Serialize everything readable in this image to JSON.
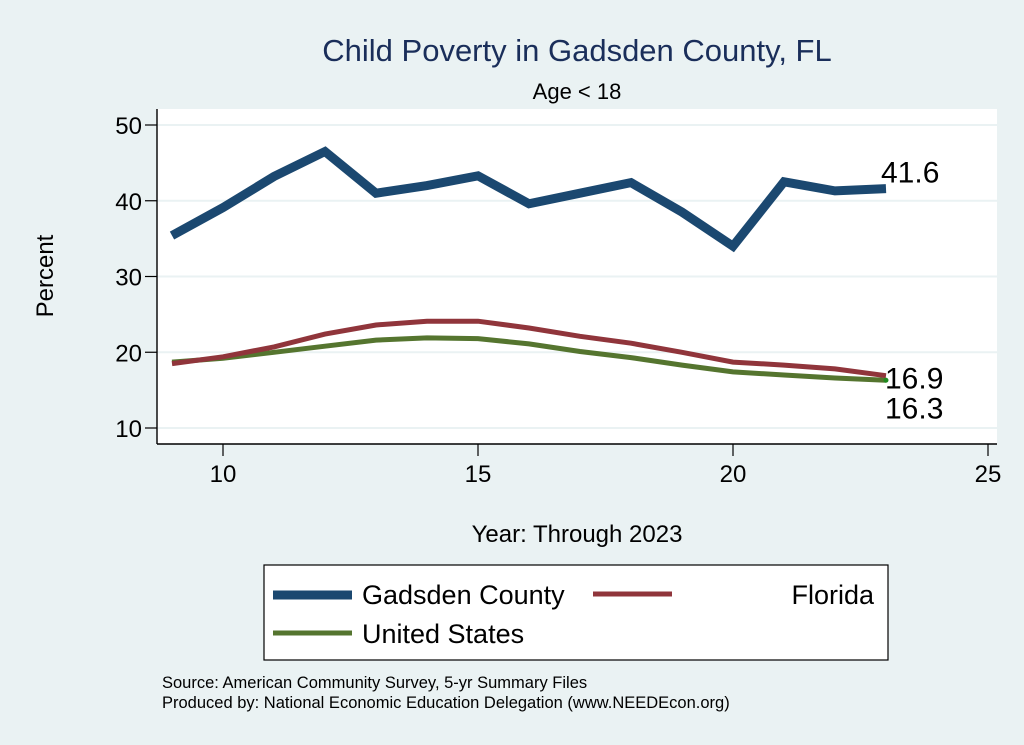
{
  "chart_data": {
    "type": "line",
    "title": "Child Poverty in Gadsden County, FL",
    "subtitle": "Age < 18",
    "xlabel": "Year: Through 2023",
    "ylabel": "Percent",
    "xlim": [
      8.7,
      25.3
    ],
    "ylim": [
      8,
      52.5
    ],
    "xticks": [
      10,
      15,
      20,
      25
    ],
    "yticks": [
      10,
      20,
      30,
      40,
      50
    ],
    "grid": true,
    "x": [
      9,
      10,
      11,
      12,
      13,
      14,
      15,
      16,
      17,
      18,
      19,
      20,
      21,
      22,
      23
    ],
    "series": [
      {
        "name": "Gadsden County",
        "color": "#1b4870",
        "values": [
          35.4,
          39.1,
          43.2,
          46.5,
          41.0,
          42.0,
          43.3,
          39.6,
          41.0,
          42.4,
          38.5,
          34.0,
          42.5,
          41.3,
          41.6
        ],
        "end_label": "41.6"
      },
      {
        "name": "Florida",
        "color": "#90353b",
        "values": [
          18.5,
          19.4,
          20.7,
          22.4,
          23.6,
          24.1,
          24.1,
          23.2,
          22.1,
          21.2,
          20.0,
          18.7,
          18.3,
          17.8,
          16.9
        ],
        "end_label": "16.9"
      },
      {
        "name": "United States",
        "color": "#55752f",
        "values": [
          18.7,
          19.2,
          20.0,
          20.8,
          21.6,
          21.9,
          21.8,
          21.1,
          20.1,
          19.3,
          18.3,
          17.4,
          17.0,
          16.6,
          16.3
        ],
        "end_label": "16.3"
      }
    ],
    "legend": {
      "position": "bottom",
      "entries": [
        "Gadsden County",
        "Florida",
        "United States"
      ]
    },
    "notes": [
      "Source: American Community Survey, 5-yr Summary Files",
      "Produced by: National Economic Education Delegation (www.NEEDEcon.org)"
    ]
  }
}
